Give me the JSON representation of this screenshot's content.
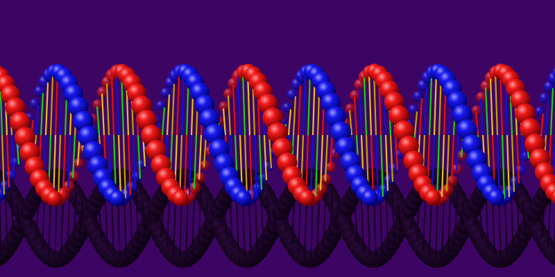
{
  "scene": {
    "subject": "dna-double-helix-render",
    "colors": {
      "background": "#3d0563",
      "strand_a": "#e01010",
      "strand_b": "#1010e0",
      "shadow": "#14001f",
      "base_pairs": [
        "#e01010",
        "#1010e0",
        "#18d018",
        "#e8c020",
        "#c8a000"
      ]
    }
  }
}
